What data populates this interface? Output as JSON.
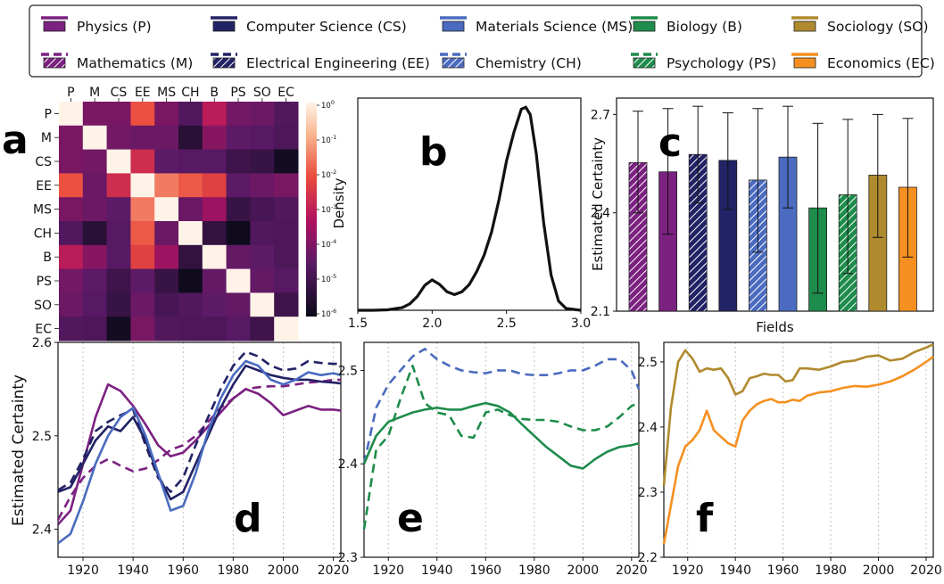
{
  "legend": {
    "entries": [
      {
        "key": "P",
        "label": "Physics (P)",
        "color": "#7b2180",
        "style": "solid"
      },
      {
        "key": "M",
        "label": "Mathematics (M)",
        "color": "#7b2180",
        "style": "hatched"
      },
      {
        "key": "CS",
        "label": "Computer Science (CS)",
        "color": "#222266",
        "style": "solid"
      },
      {
        "key": "EE",
        "label": "Electrical Engineering (EE)",
        "color": "#222266",
        "style": "hatched"
      },
      {
        "key": "MS",
        "label": "Materials Science (MS)",
        "color": "#4a6bbf",
        "style": "solid"
      },
      {
        "key": "CH",
        "label": "Chemistry (CH)",
        "color": "#4a6bbf",
        "style": "hatched"
      },
      {
        "key": "B",
        "label": "Biology (B)",
        "color": "#1e8c4b",
        "style": "solid"
      },
      {
        "key": "PS",
        "label": "Psychology (PS)",
        "color": "#1e8c4b",
        "style": "hatched"
      },
      {
        "key": "SO",
        "label": "Sociology (SO)",
        "color": "#b08a2e",
        "style": "solid"
      },
      {
        "key": "EC",
        "label": "Economics (EC)",
        "color": "#f59020",
        "style": "solid"
      }
    ]
  },
  "chart_data": [
    {
      "panel": "a",
      "type": "heatmap",
      "categories": [
        "P",
        "M",
        "CS",
        "EE",
        "MS",
        "CH",
        "B",
        "PS",
        "SO",
        "EC"
      ],
      "colorbar_ticks": [
        "10^0",
        "10^-1",
        "10^-2",
        "10^-3",
        "10^-4",
        "10^-5",
        "10^-6"
      ],
      "log10_values": [
        [
          0,
          -4.2,
          -4.2,
          -2.1,
          -4.2,
          -4.8,
          -3.2,
          -4.3,
          -4.4,
          -4.8
        ],
        [
          -4.2,
          0,
          -4.3,
          -4.4,
          -4.4,
          -5.6,
          -4.0,
          -4.6,
          -4.7,
          -4.9
        ],
        [
          -4.2,
          -4.3,
          0,
          -2.8,
          -4.6,
          -4.7,
          -4.7,
          -5.2,
          -5.3,
          -6.0
        ],
        [
          -2.1,
          -4.4,
          -2.8,
          0,
          -1.6,
          -2.0,
          -2.4,
          -4.6,
          -4.4,
          -4.2
        ],
        [
          -4.2,
          -4.4,
          -4.6,
          -1.6,
          0,
          -4.4,
          -3.7,
          -5.3,
          -5.0,
          -4.8
        ],
        [
          -4.8,
          -5.6,
          -4.7,
          -2.0,
          -4.4,
          0,
          -5.4,
          -6.1,
          -4.8,
          -4.9
        ],
        [
          -3.2,
          -4.0,
          -4.7,
          -2.4,
          -3.7,
          -5.4,
          0,
          -4.5,
          -4.6,
          -4.9
        ],
        [
          -4.3,
          -4.6,
          -5.2,
          -4.6,
          -5.3,
          -6.1,
          -4.5,
          0,
          -4.5,
          -4.7
        ],
        [
          -4.4,
          -4.7,
          -5.3,
          -4.4,
          -5.0,
          -4.8,
          -4.6,
          -4.5,
          0,
          -5.2
        ],
        [
          -4.8,
          -4.9,
          -6.0,
          -4.2,
          -4.8,
          -4.9,
          -4.9,
          -4.7,
          -5.2,
          0
        ]
      ]
    },
    {
      "panel": "b",
      "type": "line",
      "ylabel": "Density",
      "xlim": [
        1.5,
        3.0
      ],
      "xticks": [
        "1.5",
        "2.0",
        "2.5",
        "3.0"
      ],
      "x": [
        1.5,
        1.6,
        1.7,
        1.8,
        1.85,
        1.9,
        1.95,
        2.0,
        2.05,
        2.1,
        2.15,
        2.2,
        2.25,
        2.3,
        2.35,
        2.4,
        2.45,
        2.5,
        2.55,
        2.6,
        2.63,
        2.66,
        2.7,
        2.75,
        2.8,
        2.85,
        2.9,
        3.0
      ],
      "y": [
        0,
        0,
        0.005,
        0.03,
        0.07,
        0.15,
        0.27,
        0.33,
        0.28,
        0.2,
        0.17,
        0.2,
        0.28,
        0.42,
        0.6,
        0.85,
        1.2,
        1.62,
        1.93,
        2.18,
        2.2,
        2.12,
        1.7,
        0.95,
        0.38,
        0.1,
        0.02,
        0
      ]
    },
    {
      "panel": "c",
      "type": "bar",
      "xlabel": "Fields",
      "ylabel": "Estimated Certainty",
      "ylim": [
        2.1,
        2.75
      ],
      "yticks": [
        "2.1",
        "2.4",
        "2.7"
      ],
      "categories": [
        "M",
        "P",
        "EE",
        "CS",
        "CH",
        "MS",
        "B",
        "PS",
        "SO",
        "EC"
      ],
      "values": [
        2.553,
        2.525,
        2.578,
        2.56,
        2.5,
        2.57,
        2.415,
        2.455,
        2.515,
        2.478
      ],
      "err_low": [
        2.4,
        2.335,
        2.43,
        2.41,
        2.28,
        2.415,
        2.155,
        2.215,
        2.325,
        2.265
      ],
      "err_high": [
        2.71,
        2.718,
        2.725,
        2.705,
        2.718,
        2.725,
        2.673,
        2.685,
        2.7,
        2.688
      ]
    },
    {
      "panel": "d",
      "type": "line",
      "ylabel": "Estimated Certainty",
      "xlim": [
        1910,
        2023
      ],
      "ylim": [
        2.37,
        2.6
      ],
      "xticks": [
        "1920",
        "1940",
        "1960",
        "1980",
        "2000",
        "2020"
      ],
      "yticks": [
        "2.4",
        "2.5",
        "2.6"
      ],
      "x": [
        1910,
        1915,
        1920,
        1925,
        1930,
        1935,
        1940,
        1945,
        1950,
        1955,
        1960,
        1965,
        1970,
        1975,
        1980,
        1985,
        1990,
        1995,
        2000,
        2005,
        2010,
        2015,
        2020,
        2023
      ],
      "series": [
        {
          "key": "P",
          "values": [
            2.405,
            2.42,
            2.47,
            2.52,
            2.555,
            2.548,
            2.532,
            2.512,
            2.49,
            2.478,
            2.482,
            2.495,
            2.51,
            2.525,
            2.54,
            2.55,
            2.545,
            2.535,
            2.522,
            2.527,
            2.532,
            2.528,
            2.528,
            2.527
          ]
        },
        {
          "key": "M",
          "values": [
            2.41,
            2.435,
            2.455,
            2.468,
            2.475,
            2.468,
            2.462,
            2.465,
            2.474,
            2.485,
            2.49,
            2.5,
            2.515,
            2.53,
            2.54,
            2.55,
            2.552,
            2.553,
            2.553,
            2.555,
            2.557,
            2.558,
            2.56,
            2.56
          ]
        },
        {
          "key": "CS",
          "values": [
            2.44,
            2.445,
            2.47,
            2.495,
            2.51,
            2.505,
            2.52,
            2.495,
            2.458,
            2.432,
            2.44,
            2.47,
            2.5,
            2.53,
            2.555,
            2.575,
            2.57,
            2.565,
            2.562,
            2.56,
            2.56,
            2.558,
            2.557,
            2.556
          ]
        },
        {
          "key": "EE",
          "values": [
            2.442,
            2.45,
            2.475,
            2.505,
            2.515,
            2.522,
            2.528,
            2.49,
            2.455,
            2.44,
            2.455,
            2.49,
            2.52,
            2.55,
            2.575,
            2.59,
            2.585,
            2.575,
            2.57,
            2.572,
            2.58,
            2.578,
            2.577,
            2.577
          ]
        },
        {
          "key": "MS",
          "values": [
            2.385,
            2.395,
            2.43,
            2.47,
            2.5,
            2.52,
            2.53,
            2.5,
            2.46,
            2.42,
            2.425,
            2.46,
            2.505,
            2.54,
            2.565,
            2.58,
            2.575,
            2.56,
            2.555,
            2.56,
            2.568,
            2.565,
            2.567,
            2.565
          ]
        }
      ]
    },
    {
      "panel": "e",
      "type": "line",
      "xlim": [
        1910,
        2023
      ],
      "ylim": [
        2.3,
        2.53
      ],
      "xticks": [
        "1920",
        "1940",
        "1960",
        "1980",
        "2000",
        "2020"
      ],
      "yticks": [
        "2.3",
        "2.4",
        "2.5"
      ],
      "x": [
        1910,
        1915,
        1920,
        1925,
        1930,
        1935,
        1940,
        1945,
        1950,
        1955,
        1960,
        1965,
        1970,
        1975,
        1980,
        1985,
        1990,
        1995,
        2000,
        2005,
        2010,
        2015,
        2020,
        2023
      ],
      "series": [
        {
          "key": "CH",
          "values": [
            2.4,
            2.46,
            2.485,
            2.5,
            2.515,
            2.523,
            2.512,
            2.505,
            2.5,
            2.498,
            2.497,
            2.5,
            2.5,
            2.496,
            2.495,
            2.495,
            2.497,
            2.5,
            2.5,
            2.505,
            2.512,
            2.512,
            2.5,
            2.48
          ]
        },
        {
          "key": "B",
          "values": [
            2.4,
            2.43,
            2.445,
            2.45,
            2.455,
            2.458,
            2.46,
            2.458,
            2.458,
            2.462,
            2.465,
            2.462,
            2.455,
            2.442,
            2.43,
            2.418,
            2.408,
            2.398,
            2.395,
            2.405,
            2.413,
            2.418,
            2.42,
            2.422
          ]
        },
        {
          "key": "PS",
          "values": [
            2.33,
            2.415,
            2.43,
            2.47,
            2.505,
            2.465,
            2.455,
            2.452,
            2.43,
            2.428,
            2.455,
            2.458,
            2.452,
            2.448,
            2.447,
            2.447,
            2.445,
            2.44,
            2.436,
            2.436,
            2.44,
            2.45,
            2.462,
            2.465
          ]
        }
      ]
    },
    {
      "panel": "f",
      "type": "line",
      "xlim": [
        1910,
        2023
      ],
      "ylim": [
        2.2,
        2.53
      ],
      "xticks": [
        "1920",
        "1940",
        "1960",
        "1980",
        "2000",
        "2020"
      ],
      "yticks": [
        "2.2",
        "2.3",
        "2.4",
        "2.5"
      ],
      "x": [
        1910,
        1913,
        1916,
        1919,
        1922,
        1925,
        1928,
        1931,
        1934,
        1937,
        1940,
        1943,
        1946,
        1949,
        1952,
        1955,
        1958,
        1961,
        1964,
        1967,
        1970,
        1975,
        1980,
        1985,
        1990,
        1995,
        2000,
        2005,
        2010,
        2015,
        2020,
        2023
      ],
      "series": [
        {
          "key": "SO",
          "values": [
            2.31,
            2.43,
            2.5,
            2.518,
            2.505,
            2.485,
            2.49,
            2.488,
            2.49,
            2.475,
            2.45,
            2.455,
            2.475,
            2.478,
            2.482,
            2.48,
            2.48,
            2.47,
            2.472,
            2.49,
            2.49,
            2.488,
            2.493,
            2.5,
            2.502,
            2.508,
            2.51,
            2.502,
            2.505,
            2.515,
            2.522,
            2.527
          ]
        },
        {
          "key": "EC",
          "values": [
            2.22,
            2.28,
            2.34,
            2.37,
            2.38,
            2.395,
            2.425,
            2.395,
            2.385,
            2.375,
            2.37,
            2.41,
            2.425,
            2.435,
            2.44,
            2.443,
            2.438,
            2.438,
            2.442,
            2.44,
            2.448,
            2.453,
            2.455,
            2.46,
            2.463,
            2.462,
            2.465,
            2.47,
            2.478,
            2.488,
            2.5,
            2.508
          ]
        }
      ]
    }
  ],
  "panel_letters": {
    "a": "a",
    "b": "b",
    "c": "c",
    "d": "d",
    "e": "e",
    "f": "f"
  }
}
